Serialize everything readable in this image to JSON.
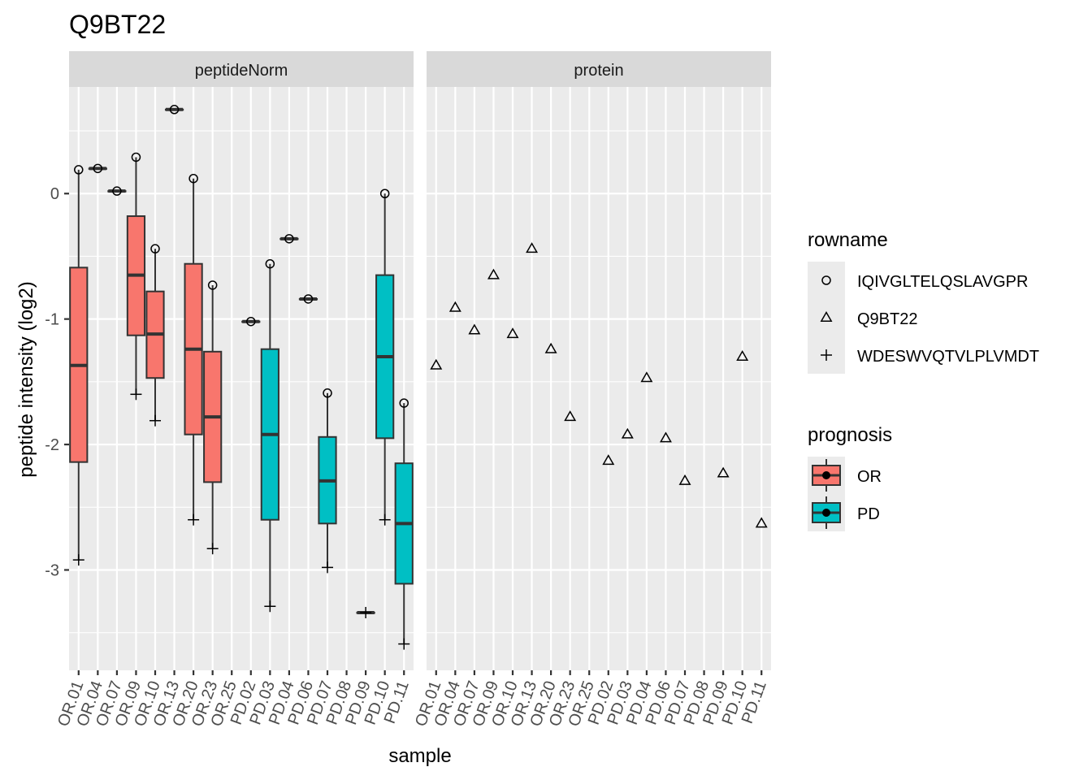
{
  "chart_data": {
    "type": "boxplot",
    "title": "Q9BT22",
    "xlabel": "sample",
    "ylabel": "peptide intensity (log2)",
    "ylim": [
      -3.8,
      0.85
    ],
    "y_ticks": [
      0,
      -1,
      -2,
      -3
    ],
    "y_tick_labels": [
      "0",
      "-1",
      "-2",
      "-3"
    ],
    "grid": true,
    "samples": [
      "OR.01",
      "OR.04",
      "OR.07",
      "OR.09",
      "OR.10",
      "OR.13",
      "OR.20",
      "OR.23",
      "OR.25",
      "PD.02",
      "PD.03",
      "PD.04",
      "PD.06",
      "PD.07",
      "PD.08",
      "PD.09",
      "PD.10",
      "PD.11"
    ],
    "prognosis": [
      "OR",
      "OR",
      "OR",
      "OR",
      "OR",
      "OR",
      "OR",
      "OR",
      "OR",
      "PD",
      "PD",
      "PD",
      "PD",
      "PD",
      "PD",
      "PD",
      "PD",
      "PD"
    ],
    "colors": {
      "OR": "#F8766D",
      "PD": "#00BFC4",
      "strip": "#D9D9D9",
      "panel": "#EBEBEB"
    },
    "panels": [
      {
        "strip": "peptideNorm",
        "points": [
          {
            "sample": "OR.01",
            "IQIVGLTELQSLAVGPR": 0.19,
            "WDESWVQTVLPLVMDT": -2.92
          },
          {
            "sample": "OR.04",
            "IQIVGLTELQSLAVGPR": 0.2
          },
          {
            "sample": "OR.07",
            "IQIVGLTELQSLAVGPR": 0.02
          },
          {
            "sample": "OR.09",
            "IQIVGLTELQSLAVGPR": 0.29,
            "WDESWVQTVLPLVMDT": -1.6
          },
          {
            "sample": "OR.10",
            "IQIVGLTELQSLAVGPR": -0.44,
            "WDESWVQTVLPLVMDT": -1.81
          },
          {
            "sample": "OR.13",
            "IQIVGLTELQSLAVGPR": 0.67
          },
          {
            "sample": "OR.20",
            "IQIVGLTELQSLAVGPR": 0.12,
            "WDESWVQTVLPLVMDT": -2.6
          },
          {
            "sample": "OR.23",
            "IQIVGLTELQSLAVGPR": -0.73,
            "WDESWVQTVLPLVMDT": -2.83
          },
          {
            "sample": "OR.25"
          },
          {
            "sample": "PD.02",
            "IQIVGLTELQSLAVGPR": -1.02
          },
          {
            "sample": "PD.03",
            "IQIVGLTELQSLAVGPR": -0.56,
            "WDESWVQTVLPLVMDT": -3.29
          },
          {
            "sample": "PD.04",
            "IQIVGLTELQSLAVGPR": -0.36
          },
          {
            "sample": "PD.06",
            "IQIVGLTELQSLAVGPR": -0.84
          },
          {
            "sample": "PD.07",
            "IQIVGLTELQSLAVGPR": -1.59,
            "WDESWVQTVLPLVMDT": -2.98
          },
          {
            "sample": "PD.08"
          },
          {
            "sample": "PD.09",
            "WDESWVQTVLPLVMDT": -3.34
          },
          {
            "sample": "PD.10",
            "IQIVGLTELQSLAVGPR": 0.0,
            "WDESWVQTVLPLVMDT": -2.6
          },
          {
            "sample": "PD.11",
            "IQIVGLTELQSLAVGPR": -1.67,
            "WDESWVQTVLPLVMDT": -3.59
          }
        ],
        "boxes": [
          {
            "sample": "OR.01",
            "prognosis": "OR",
            "lower": -2.92,
            "q1": -2.14,
            "median": -1.37,
            "q3": -0.59,
            "upper": 0.19
          },
          {
            "sample": "OR.04",
            "prognosis": "OR",
            "lower": 0.2,
            "q1": 0.2,
            "median": 0.2,
            "q3": 0.2,
            "upper": 0.2
          },
          {
            "sample": "OR.07",
            "prognosis": "OR",
            "lower": 0.02,
            "q1": 0.02,
            "median": 0.02,
            "q3": 0.02,
            "upper": 0.02
          },
          {
            "sample": "OR.09",
            "prognosis": "OR",
            "lower": -1.6,
            "q1": -1.13,
            "median": -0.65,
            "q3": -0.18,
            "upper": 0.29
          },
          {
            "sample": "OR.10",
            "prognosis": "OR",
            "lower": -1.81,
            "q1": -1.47,
            "median": -1.12,
            "q3": -0.78,
            "upper": -0.44
          },
          {
            "sample": "OR.13",
            "prognosis": "OR",
            "lower": 0.67,
            "q1": 0.67,
            "median": 0.67,
            "q3": 0.67,
            "upper": 0.67
          },
          {
            "sample": "OR.20",
            "prognosis": "OR",
            "lower": -2.6,
            "q1": -1.92,
            "median": -1.24,
            "q3": -0.56,
            "upper": 0.12
          },
          {
            "sample": "OR.23",
            "prognosis": "OR",
            "lower": -2.83,
            "q1": -2.3,
            "median": -1.78,
            "q3": -1.26,
            "upper": -0.73
          },
          {
            "sample": "PD.02",
            "prognosis": "PD",
            "lower": -1.02,
            "q1": -1.02,
            "median": -1.02,
            "q3": -1.02,
            "upper": -1.02
          },
          {
            "sample": "PD.03",
            "prognosis": "PD",
            "lower": -3.29,
            "q1": -2.6,
            "median": -1.92,
            "q3": -1.24,
            "upper": -0.56
          },
          {
            "sample": "PD.04",
            "prognosis": "PD",
            "lower": -0.36,
            "q1": -0.36,
            "median": -0.36,
            "q3": -0.36,
            "upper": -0.36
          },
          {
            "sample": "PD.06",
            "prognosis": "PD",
            "lower": -0.84,
            "q1": -0.84,
            "median": -0.84,
            "q3": -0.84,
            "upper": -0.84
          },
          {
            "sample": "PD.07",
            "prognosis": "PD",
            "lower": -2.98,
            "q1": -2.63,
            "median": -2.29,
            "q3": -1.94,
            "upper": -1.59
          },
          {
            "sample": "PD.09",
            "prognosis": "PD",
            "lower": -3.34,
            "q1": -3.34,
            "median": -3.34,
            "q3": -3.34,
            "upper": -3.34
          },
          {
            "sample": "PD.10",
            "prognosis": "PD",
            "lower": -2.6,
            "q1": -1.95,
            "median": -1.3,
            "q3": -0.65,
            "upper": 0.0
          },
          {
            "sample": "PD.11",
            "prognosis": "PD",
            "lower": -3.59,
            "q1": -3.11,
            "median": -2.63,
            "q3": -2.15,
            "upper": -1.67
          }
        ]
      },
      {
        "strip": "protein",
        "points": [
          {
            "sample": "OR.01",
            "Q9BT22": -1.37
          },
          {
            "sample": "OR.04",
            "Q9BT22": -0.91
          },
          {
            "sample": "OR.07",
            "Q9BT22": -1.09
          },
          {
            "sample": "OR.09",
            "Q9BT22": -0.65
          },
          {
            "sample": "OR.10",
            "Q9BT22": -1.12
          },
          {
            "sample": "OR.13",
            "Q9BT22": -0.44
          },
          {
            "sample": "OR.20",
            "Q9BT22": -1.24
          },
          {
            "sample": "OR.23",
            "Q9BT22": -1.78
          },
          {
            "sample": "OR.25"
          },
          {
            "sample": "PD.02",
            "Q9BT22": -2.13
          },
          {
            "sample": "PD.03",
            "Q9BT22": -1.92
          },
          {
            "sample": "PD.04",
            "Q9BT22": -1.47
          },
          {
            "sample": "PD.06",
            "Q9BT22": -1.95
          },
          {
            "sample": "PD.07",
            "Q9BT22": -2.29
          },
          {
            "sample": "PD.08"
          },
          {
            "sample": "PD.09",
            "Q9BT22": -2.23
          },
          {
            "sample": "PD.10",
            "Q9BT22": -1.3
          },
          {
            "sample": "PD.11",
            "Q9BT22": -2.63
          }
        ]
      }
    ],
    "legend": {
      "position": "right",
      "rowname": {
        "title": "rowname",
        "entries": [
          {
            "label": "IQIVGLTELQSLAVGPR",
            "shape": "circle"
          },
          {
            "label": "Q9BT22",
            "shape": "triangle"
          },
          {
            "label": "WDESWVQTVLPLVMDT",
            "shape": "plus"
          }
        ]
      },
      "prognosis": {
        "title": "prognosis",
        "entries": [
          {
            "label": "OR"
          },
          {
            "label": "PD"
          }
        ]
      }
    }
  }
}
